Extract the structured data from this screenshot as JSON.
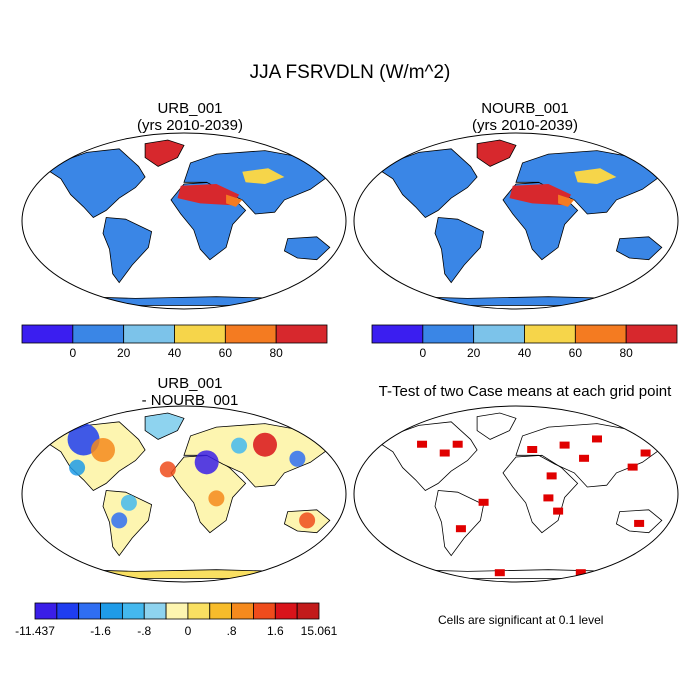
{
  "title": "JJA FSRVDLN (W/m^2)",
  "panels": [
    {
      "line1": "URB_001",
      "line2": "(yrs 2010-2039)"
    },
    {
      "line1": "NOURB_001",
      "line2": "(yrs 2010-2039)"
    },
    {
      "line1": "URB_001",
      "line2": "- NOURB_001"
    },
    {
      "line1": "T-Test of two Case means at each grid point",
      "line2": ""
    }
  ],
  "colorbar_abs": {
    "colors": [
      "#3b1ef0",
      "#3a86e6",
      "#7cc3ea",
      "#f6d54a",
      "#f47b21",
      "#d7282d"
    ],
    "labels": [
      "0",
      "20",
      "40",
      "60",
      "80"
    ]
  },
  "colorbar_diff": {
    "colors": [
      "#3a1ee8",
      "#1f3df0",
      "#2f6ef2",
      "#1f9be8",
      "#44b8ee",
      "#8ed3ef",
      "#fdf5b0",
      "#f9e062",
      "#f7bc2b",
      "#f58a1d",
      "#ef4c1c",
      "#d9131a",
      "#c21a1a"
    ],
    "labels": [
      "-11.437",
      "-1.6",
      "-.8",
      "0",
      ".8",
      "1.6",
      "15.061"
    ]
  },
  "significance_note": "Cells are significant at 0.1 level",
  "significance_color": "#e00000",
  "ocean_color": "#ffffff",
  "land_base_color": "#3a86e6"
}
